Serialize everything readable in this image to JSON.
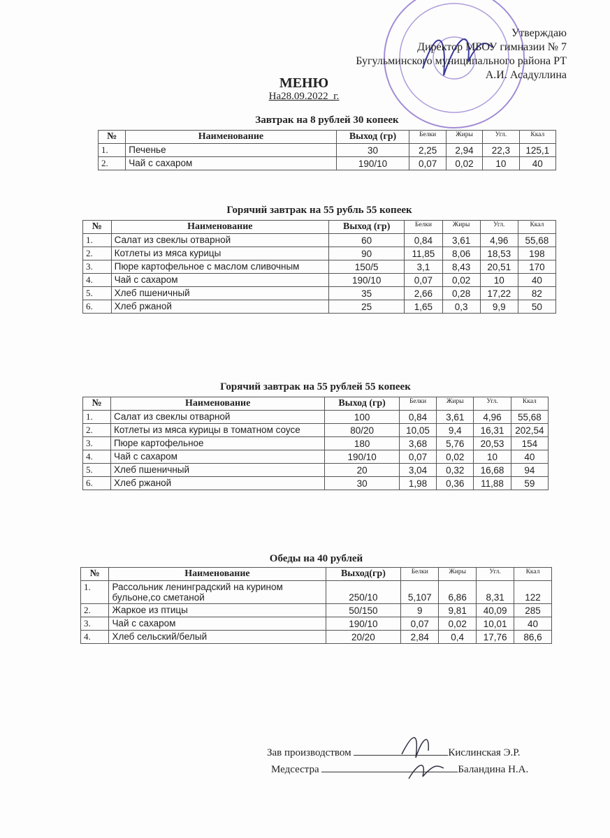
{
  "approval": {
    "line1": "Утверждаю",
    "line2": "Директор МБОУ гимназии № 7",
    "line3": "Бугульминского муниципального района РТ",
    "line4": "А.И. Асадуллина"
  },
  "title": "МЕНЮ",
  "date": "На28.09.2022_г.",
  "stamp_color": "#7a5bc4",
  "tables": [
    {
      "caption": "Завтрак на 8 рублей 30 копеек",
      "headers": [
        "№",
        "Наименование",
        "Выход (гр)",
        "Белки",
        "Жиры",
        "Угл.",
        "Ккал"
      ],
      "rows": [
        [
          "1.",
          "Печенье",
          "30",
          "2,25",
          "2,94",
          "22,3",
          "125,1"
        ],
        [
          "2.",
          "Чай с сахаром",
          "190/10",
          "0,07",
          "0,02",
          "10",
          "40"
        ]
      ]
    },
    {
      "caption": "Горячий завтрак на 55 рубль 55 копеек",
      "headers": [
        "№",
        "Наименование",
        "Выход (гр)",
        "Белки",
        "Жиры",
        "Угл.",
        "Ккал"
      ],
      "rows": [
        [
          "1.",
          "Салат из свеклы отварной",
          "60",
          "0,84",
          "3,61",
          "4,96",
          "55,68"
        ],
        [
          "2.",
          "Котлеты из мяса курицы",
          "90",
          "11,85",
          "8,06",
          "18,53",
          "198"
        ],
        [
          "3.",
          "Пюре картофельное с маслом сливочным",
          "150/5",
          "3,1",
          "8,43",
          "20,51",
          "170"
        ],
        [
          "4.",
          "Чай с сахаром",
          "190/10",
          "0,07",
          "0,02",
          "10",
          "40"
        ],
        [
          "5.",
          "Хлеб пшеничный",
          "35",
          "2,66",
          "0,28",
          "17,22",
          "82"
        ],
        [
          "6.",
          "Хлеб ржаной",
          "25",
          "1,65",
          "0,3",
          "9,9",
          "50"
        ]
      ]
    },
    {
      "caption": "Горячий завтрак на 55 рублей 55 копеек",
      "headers": [
        "№",
        "Наименование",
        "Выход (гр)",
        "Белки",
        "Жиры",
        "Угл.",
        "Ккал"
      ],
      "rows": [
        [
          "1.",
          "Салат из свеклы отварной",
          "100",
          "0,84",
          "3,61",
          "4,96",
          "55,68"
        ],
        [
          "2.",
          "Котлеты из мяса курицы в томатном соусе",
          "80/20",
          "10,05",
          "9,4",
          "16,31",
          "202,54"
        ],
        [
          "3.",
          "Пюре картофельное",
          "180",
          "3,68",
          "5,76",
          "20,53",
          "154"
        ],
        [
          "4.",
          "Чай с сахаром",
          "190/10",
          "0,07",
          "0,02",
          "10",
          "40"
        ],
        [
          "5.",
          "Хлеб пшеничный",
          "20",
          "3,04",
          "0,32",
          "16,68",
          "94"
        ],
        [
          "6.",
          "Хлеб ржаной",
          "30",
          "1,98",
          "0,36",
          "11,88",
          "59"
        ]
      ]
    },
    {
      "caption": "Обеды на 40 рублей",
      "headers": [
        "№",
        "Наименование",
        "Выход(гр)",
        "Белки",
        "Жиры",
        "Угл.",
        "Ккал"
      ],
      "rows": [
        [
          "1.",
          "Рассольник ленинградский на курином бульоне,со сметаной",
          "250/10",
          "5,107",
          "6,86",
          "8,31",
          "122"
        ],
        [
          "2.",
          "Жаркое из птицы",
          "50/150",
          "9",
          "9,81",
          "40,09",
          "285"
        ],
        [
          "3.",
          "Чай с сахаром",
          "190/10",
          "0,07",
          "0,02",
          "10,01",
          "40"
        ],
        [
          "4.",
          "Хлеб сельский/белый",
          "20/20",
          "2,84",
          "0,4",
          "17,76",
          "86,6"
        ]
      ]
    }
  ],
  "signatures": [
    {
      "role": "Зав производством",
      "name": "Кислинская Э.Р."
    },
    {
      "role": "Медсестра",
      "name": "Баландина Н.А."
    }
  ]
}
